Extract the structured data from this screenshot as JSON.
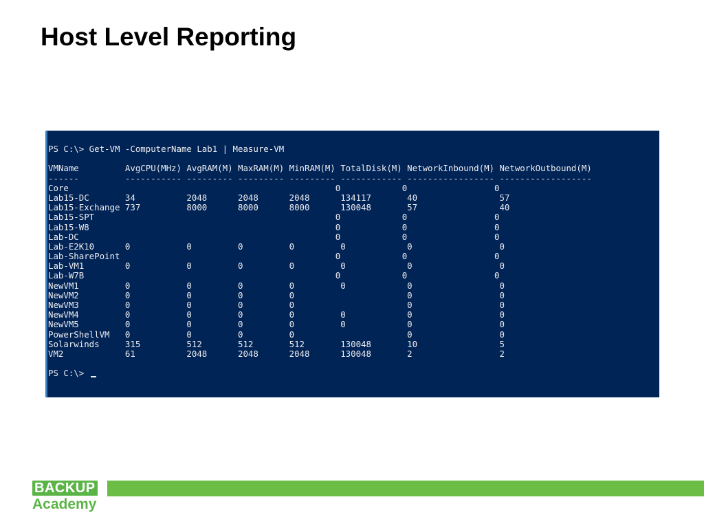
{
  "slide": {
    "title": "Host Level Reporting"
  },
  "console": {
    "command_line": "PS C:\\> Get-VM -ComputerName Lab1 | Measure-VM",
    "columns": [
      "VMName",
      "AvgCPU(MHz)",
      "AvgRAM(M)",
      "MaxRAM(M)",
      "MinRAM(M)",
      "TotalDisk(M)",
      "NetworkInbound(M)",
      "NetworkOutbound(M)"
    ],
    "header_line": "VMName         AvgCPU(MHz) AvgRAM(M) MaxRAM(M) MinRAM(M) TotalDisk(M) NetworkInbound(M) NetworkOutbound(M)",
    "separator_line": "------         ----------- --------- --------- --------- ------------ ----------------- ------------------",
    "rows": [
      "Core                                                    0            0                 0",
      "Lab15-DC       34          2048      2048      2048      134117       40                57",
      "Lab15-Exchange 737         8000      8000      8000      130048       57                40",
      "Lab15-SPT                                               0            0                 0",
      "Lab15-W8                                                0            0                 0",
      "Lab-DC                                                  0            0                 0",
      "Lab-E2K10      0           0         0         0         0            0                 0",
      "Lab-SharePoint                                          0            0                 0",
      "Lab-VM1        0           0         0         0         0            0                 0",
      "Lab-W7B                                                 0            0                 0",
      "NewVM1         0           0         0         0         0            0                 0",
      "NewVM2         0           0         0         0                      0                 0",
      "NewVM3         0           0         0         0                      0                 0",
      "NewVM4         0           0         0         0         0            0                 0",
      "NewVM5         0           0         0         0         0            0                 0",
      "PowerShellVM   0           0         0         0                      0                 0",
      "Solarwinds     315         512       512       512       130048       10                5",
      "VM2            61          2048      2048      2048      130048       2                 2"
    ],
    "prompt": "PS C:\\> "
  },
  "footer": {
    "logo_top": "BACKUP",
    "logo_bottom": "Academy"
  },
  "colors": {
    "console_bg": "#012456",
    "console_text": "#eeedf0",
    "brand_green": "#6cbd45"
  }
}
